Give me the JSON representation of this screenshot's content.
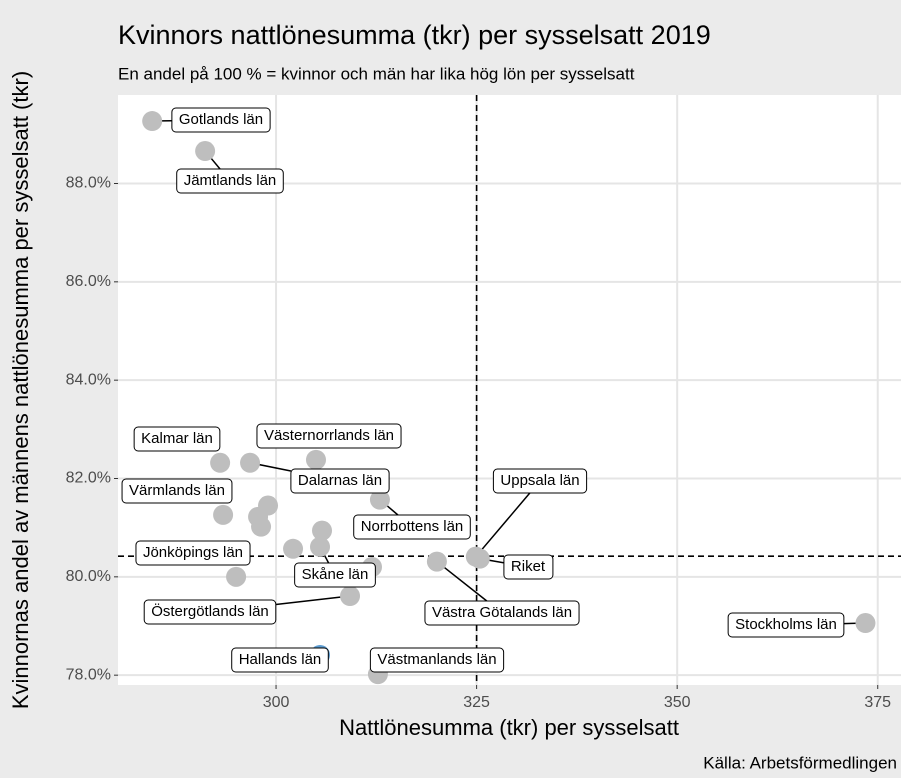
{
  "chart_data": {
    "type": "scatter",
    "title": "Kvinnors nattlönesumma (tkr) per sysselsatt 2019",
    "subtitle": "En andel på 100 % = kvinnor och män har lika hög lön per sysselsatt",
    "x_label": "Nattlönesumma (tkr) per sysselsatt",
    "y_label": "Kvinnornas andel av männens nattlönesumma per sysselsatt (tkr)",
    "caption": "Källa: Arbetsförmedlingen",
    "labels": [
      "Gotlands län",
      "Jämtlands län",
      "Kalmar län",
      "Dalarnas län",
      "Västernorrlands län",
      "Värmlands län",
      null,
      null,
      null,
      null,
      "Skåne län",
      "Uppsala län",
      "Norrbottens län",
      null,
      "Östergötlands län",
      "Västmanlands län",
      "Hallands län",
      "Stockholms län",
      "Västra Götalands län",
      "Jönköpings län",
      "Riket",
      null
    ],
    "x": [
      284.56,
      291.16,
      293.03,
      296.76,
      304.98,
      293.4,
      299.0,
      297.76,
      302.12,
      305.73,
      305.48,
      324.9,
      312.95,
      311.96,
      309.22,
      312.7,
      305.48,
      373.47,
      320.05,
      295.02,
      325.4,
      298.13
    ],
    "values": [
      89.27,
      88.66,
      82.32,
      82.32,
      82.38,
      81.26,
      81.45,
      81.22,
      80.57,
      80.94,
      80.61,
      80.41,
      81.57,
      80.2,
      79.61,
      78.02,
      78.41,
      79.06,
      80.31,
      80.0,
      80.37,
      81.02
    ],
    "colors": [
      "#bebebe",
      "#bebebe",
      "#bebebe",
      "#bebebe",
      "#bebebe",
      "#bebebe",
      "#bebebe",
      "#bebebe",
      "#bebebe",
      "#bebebe",
      "#bebebe",
      "#bebebe",
      "#bebebe",
      "#bebebe",
      "#bebebe",
      "#bebebe",
      "#5b9bd0",
      "#bebebe",
      "#bebebe",
      "#bebebe",
      "#bebebe",
      "#bebebe"
    ],
    "xlim": [
      280.3,
      377.9
    ],
    "ylim": [
      77.8,
      89.8
    ],
    "xticks": [
      300,
      325,
      350,
      375
    ],
    "yticks": [
      {
        "value": 78,
        "label": "78.0%"
      },
      {
        "value": 80,
        "label": "80.0%"
      },
      {
        "value": 82,
        "label": "82.0%"
      },
      {
        "value": 84,
        "label": "84.0%"
      },
      {
        "value": 86,
        "label": "86.0%"
      },
      {
        "value": 88,
        "label": "88.0%"
      }
    ],
    "vline": 325.0,
    "hline": 80.42,
    "grid": true
  }
}
